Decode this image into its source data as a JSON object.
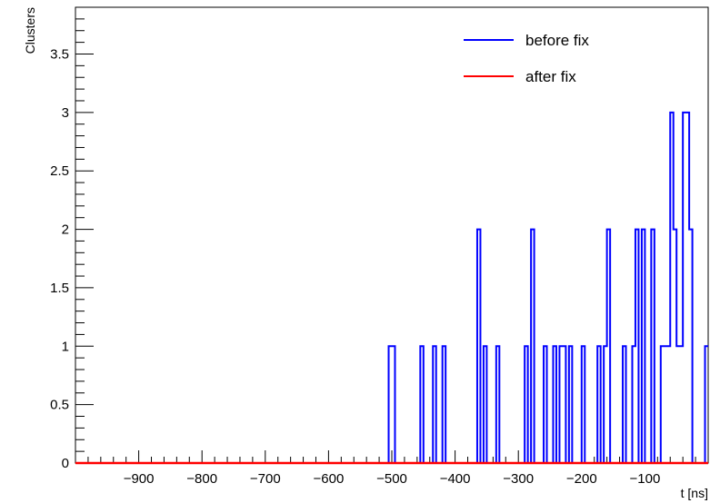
{
  "chart_data": {
    "type": "histogram",
    "xlabel": "t [ns]",
    "ylabel": "Clusters",
    "xlim": [
      -1000,
      0
    ],
    "ylim": [
      0,
      3.9
    ],
    "bin_width": 5,
    "x_ticks": [
      {
        "value": -900,
        "label": "−900"
      },
      {
        "value": -800,
        "label": "−800"
      },
      {
        "value": -700,
        "label": "−700"
      },
      {
        "value": -600,
        "label": "−600"
      },
      {
        "value": -500,
        "label": "−500"
      },
      {
        "value": -400,
        "label": "−400"
      },
      {
        "value": -300,
        "label": "−300"
      },
      {
        "value": -200,
        "label": "−200"
      },
      {
        "value": -100,
        "label": "−100"
      }
    ],
    "y_ticks": [
      {
        "value": 0,
        "label": "0"
      },
      {
        "value": 0.5,
        "label": "0.5"
      },
      {
        "value": 1,
        "label": "1"
      },
      {
        "value": 1.5,
        "label": "1.5"
      },
      {
        "value": 2,
        "label": "2"
      },
      {
        "value": 2.5,
        "label": "2.5"
      },
      {
        "value": 3,
        "label": "3"
      },
      {
        "value": 3.5,
        "label": "3.5"
      }
    ],
    "series": [
      {
        "name": "before fix",
        "color": "#0000ff",
        "bins": [
          {
            "x": -505,
            "y": 1
          },
          {
            "x": -500,
            "y": 1
          },
          {
            "x": -455,
            "y": 1
          },
          {
            "x": -435,
            "y": 1
          },
          {
            "x": -420,
            "y": 1
          },
          {
            "x": -365,
            "y": 2
          },
          {
            "x": -355,
            "y": 1
          },
          {
            "x": -335,
            "y": 1
          },
          {
            "x": -290,
            "y": 1
          },
          {
            "x": -280,
            "y": 2
          },
          {
            "x": -260,
            "y": 1
          },
          {
            "x": -245,
            "y": 1
          },
          {
            "x": -235,
            "y": 1
          },
          {
            "x": -230,
            "y": 1
          },
          {
            "x": -220,
            "y": 1
          },
          {
            "x": -200,
            "y": 1
          },
          {
            "x": -175,
            "y": 1
          },
          {
            "x": -165,
            "y": 1
          },
          {
            "x": -160,
            "y": 2
          },
          {
            "x": -135,
            "y": 1
          },
          {
            "x": -120,
            "y": 1
          },
          {
            "x": -115,
            "y": 2
          },
          {
            "x": -105,
            "y": 2
          },
          {
            "x": -90,
            "y": 2
          },
          {
            "x": -75,
            "y": 1
          },
          {
            "x": -70,
            "y": 1
          },
          {
            "x": -65,
            "y": 1
          },
          {
            "x": -60,
            "y": 3
          },
          {
            "x": -55,
            "y": 2
          },
          {
            "x": -50,
            "y": 1
          },
          {
            "x": -45,
            "y": 1
          },
          {
            "x": -40,
            "y": 3
          },
          {
            "x": -35,
            "y": 3
          },
          {
            "x": -30,
            "y": 2
          },
          {
            "x": -5,
            "y": 1
          }
        ]
      },
      {
        "name": "after fix",
        "color": "#ff0000",
        "bins": []
      }
    ],
    "legend_position": "top-right"
  }
}
